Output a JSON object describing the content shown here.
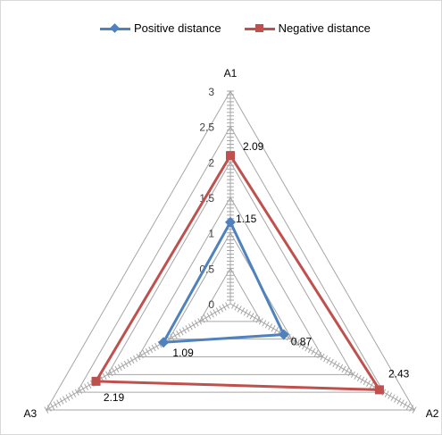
{
  "chart_data": {
    "type": "radar",
    "axes": [
      "A1",
      "A2",
      "A3"
    ],
    "radial_ticks": [
      "0",
      "0.5",
      "1",
      "1.5",
      "2",
      "2.5",
      "3"
    ],
    "rmax": 3,
    "rmin": 0,
    "series": [
      {
        "name": "Positive distance",
        "values": [
          1.15,
          0.87,
          1.09
        ],
        "labels": [
          "1.15",
          "0.87",
          "1.09"
        ],
        "color": "#4f81bd",
        "marker": "diamond"
      },
      {
        "name": "Negative distance",
        "values": [
          2.09,
          2.43,
          2.19
        ],
        "labels": [
          "2.09",
          "2.43",
          "2.19"
        ],
        "color": "#c0504d",
        "marker": "square"
      }
    ],
    "legend_position": "top",
    "grid": true
  }
}
